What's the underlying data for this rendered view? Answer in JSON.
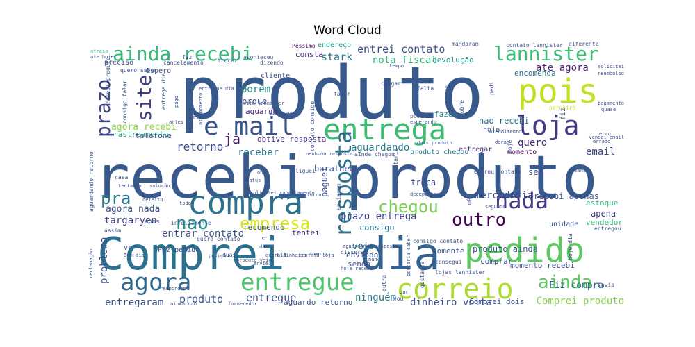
{
  "chart_data": {
    "type": "wordcloud",
    "title": "Word Cloud",
    "colormap": "viridis",
    "words": [
      {
        "text": "produto",
        "color": "#38598c"
      },
      {
        "text": "recebi produto",
        "color": "#38598c"
      },
      {
        "text": "Comprei",
        "color": "#2d708e"
      },
      {
        "text": "dia",
        "color": "#34618d"
      },
      {
        "text": "pedido",
        "color": "#5ec962"
      },
      {
        "text": "recebi",
        "color": "#3b528b"
      },
      {
        "text": "correio",
        "color": "#addc30"
      },
      {
        "text": "compra",
        "color": "#2c728e"
      },
      {
        "text": "entrega",
        "color": "#3fbc73"
      },
      {
        "text": "pois",
        "color": "#c2df23"
      },
      {
        "text": "loja",
        "color": "#443983"
      },
      {
        "text": "e mail",
        "color": "#39568c"
      },
      {
        "text": "entregue",
        "color": "#4ec36b"
      },
      {
        "text": "agora",
        "color": "#31688e"
      },
      {
        "text": "ainda recebi",
        "color": "#35b779"
      },
      {
        "text": "lannister",
        "color": "#3dbc74"
      },
      {
        "text": "nada",
        "color": "#443a83"
      },
      {
        "text": "site",
        "color": "#414287"
      },
      {
        "text": "resposta",
        "color": "#2c728e"
      },
      {
        "text": "prazo",
        "color": "#414487"
      },
      {
        "text": "chegou",
        "color": "#7ad151"
      },
      {
        "text": "outro",
        "color": "#440154"
      },
      {
        "text": "ainda",
        "color": "#5ec962"
      },
      {
        "text": "empresa",
        "color": "#d8e219"
      },
      {
        "text": "nao",
        "color": "#21908d"
      },
      {
        "text": "pra",
        "color": "#287c8e"
      },
      {
        "text": "ja",
        "color": "#481b6d"
      },
      {
        "text": "entrei contato",
        "color": "#3b528b"
      },
      {
        "text": "stark",
        "color": "#2a788e"
      },
      {
        "text": "nota fiscal",
        "color": "#35b779"
      },
      {
        "text": "devolução",
        "color": "#1f9a8a"
      },
      {
        "text": "consta",
        "color": "#46327e"
      },
      {
        "text": "endereço",
        "color": "#1fa088"
      },
      {
        "text": "ate agora",
        "color": "#482576"
      },
      {
        "text": "encomenda",
        "color": "#2c728e"
      },
      {
        "text": "porém",
        "color": "#228c8d"
      },
      {
        "text": "porque",
        "color": "#3b528b"
      },
      {
        "text": "aguardo",
        "color": "#482878"
      },
      {
        "text": "fazer",
        "color": "#25858e"
      },
      {
        "text": "agora recebi",
        "color": "#90d743"
      },
      {
        "text": "rastreamento",
        "color": "#22a884"
      },
      {
        "text": "retorno",
        "color": "#3e4a89"
      },
      {
        "text": "receber",
        "color": "#2a788e"
      },
      {
        "text": "aguardando",
        "color": "#2a788e"
      },
      {
        "text": "nao recebi",
        "color": "#2d708e"
      },
      {
        "text": "hoje",
        "color": "#3b528b"
      },
      {
        "text": "quero",
        "color": "#482878"
      },
      {
        "text": "email",
        "color": "#3e4989"
      },
      {
        "text": "telefone",
        "color": "#3b528b"
      },
      {
        "text": "obtive resposta",
        "color": "#46337f"
      },
      {
        "text": "entregar",
        "color": "#472d7b"
      },
      {
        "text": "momento",
        "color": "#440154"
      },
      {
        "text": "produto chegou",
        "color": "#2a788e"
      },
      {
        "text": "agora nada",
        "color": "#3b528b"
      },
      {
        "text": "targaryen",
        "color": "#414487"
      },
      {
        "text": "mercadoria",
        "color": "#3b528b"
      },
      {
        "text": "apena",
        "color": "#443983"
      },
      {
        "text": "estoque",
        "color": "#35b779"
      },
      {
        "text": "vendedor",
        "color": "#35b779"
      },
      {
        "text": "recebi apenas",
        "color": "#3b528b"
      },
      {
        "text": "entrar contato",
        "color": "#3b528b"
      },
      {
        "text": "prazo entrega",
        "color": "#414487"
      },
      {
        "text": "consigo",
        "color": "#2a788e"
      },
      {
        "text": "recomendo",
        "color": "#3b528b"
      },
      {
        "text": "tentei",
        "color": "#46327e"
      },
      {
        "text": "troca",
        "color": "#3b528b"
      },
      {
        "text": "paguei",
        "color": "#3e4a89"
      },
      {
        "text": "problema",
        "color": "#39568c"
      },
      {
        "text": "veio",
        "color": "#287c8e"
      },
      {
        "text": "enviado",
        "color": "#3b528b"
      },
      {
        "text": "sendo",
        "color": "#3e4a89"
      },
      {
        "text": "somente",
        "color": "#3b528b"
      },
      {
        "text": "produto ainda",
        "color": "#3b528b"
      },
      {
        "text": "unidade",
        "color": "#3b528b"
      },
      {
        "text": "comprar",
        "color": "#3b528b"
      },
      {
        "text": "momento recebi",
        "color": "#3b528b"
      },
      {
        "text": "produto",
        "color": "#3b528b"
      },
      {
        "text": "entregue",
        "color": "#3b528b"
      },
      {
        "text": "entregaram",
        "color": "#3b528b"
      },
      {
        "text": "ninguém",
        "color": "#2a788e"
      },
      {
        "text": "dinheiro volta",
        "color": "#3b528b"
      },
      {
        "text": "Comprei dois",
        "color": "#3b528b"
      },
      {
        "text": "Comprei produto",
        "color": "#84d44b"
      },
      {
        "text": "Fiz compra",
        "color": "#31688e"
      },
      {
        "text": "aguardo retorno",
        "color": "#3b528b"
      },
      {
        "text": "cancelamento",
        "color": "#3b528b"
      },
      {
        "text": "preciso",
        "color": "#3b528b"
      },
      {
        "text": "Espero",
        "color": "#3b528b"
      },
      {
        "text": "aconteceu",
        "color": "#3b528b"
      },
      {
        "text": "dizendo",
        "color": "#3b528b"
      },
      {
        "text": "cliente",
        "color": "#3b528b"
      },
      {
        "text": "mandaram",
        "color": "#3b528b"
      },
      {
        "text": "contato lannister",
        "color": "#3b528b"
      },
      {
        "text": "diferente",
        "color": "#3b528b"
      },
      {
        "text": "Péssimo",
        "color": "#440154"
      },
      {
        "text": "atraso",
        "color": "#35b779"
      },
      {
        "text": "ate hoje",
        "color": "#3b528b"
      },
      {
        "text": "tempo",
        "color": "#3b528b"
      },
      {
        "text": "chegar",
        "color": "#3b528b"
      },
      {
        "text": "falta",
        "color": "#3b528b"
      },
      {
        "text": "favor",
        "color": "#3b528b"
      },
      {
        "text": "caso",
        "color": "#3b528b"
      },
      {
        "text": "pedi",
        "color": "#3b528b"
      },
      {
        "text": "reembolso",
        "color": "#3b528b"
      },
      {
        "text": "pagamento",
        "color": "#3b528b"
      },
      {
        "text": "parceiro",
        "color": "#bddf26"
      },
      {
        "text": "posso",
        "color": "#3b528b"
      },
      {
        "text": "esperando",
        "color": "#3b528b"
      },
      {
        "text": "deram",
        "color": "#3b528b"
      },
      {
        "text": "dois produto",
        "color": "#3b528b"
      },
      {
        "text": "ainda chegou",
        "color": "#3b528b"
      },
      {
        "text": "sei",
        "color": "#3b528b"
      },
      {
        "text": "semana",
        "color": "#3b528b"
      },
      {
        "text": "liguei",
        "color": "#3b528b"
      },
      {
        "text": "onde",
        "color": "#3b528b"
      },
      {
        "text": "status",
        "color": "#3b528b"
      },
      {
        "text": "solicitei cancelamento",
        "color": "#3b528b"
      },
      {
        "text": "antes",
        "color": "#3b528b"
      },
      {
        "text": "casa",
        "color": "#3b528b"
      },
      {
        "text": "tentando",
        "color": "#3b528b"
      },
      {
        "text": "solução",
        "color": "#3b528b"
      },
      {
        "text": "defeito",
        "color": "#3b528b"
      },
      {
        "text": "todo",
        "color": "#3b528b"
      },
      {
        "text": "estorno",
        "color": "#3b528b"
      },
      {
        "text": "mês",
        "color": "#3b528b"
      },
      {
        "text": "segundo",
        "color": "#3b528b"
      },
      {
        "text": "após",
        "color": "#3b528b"
      },
      {
        "text": "assim",
        "color": "#3b528b"
      },
      {
        "text": "vc",
        "color": "#3b528b"
      },
      {
        "text": "Bom dia",
        "color": "#3b528b"
      },
      {
        "text": "kit",
        "color": "#3b528b"
      },
      {
        "text": "enviei",
        "color": "#3b528b"
      },
      {
        "text": "data",
        "color": "#3b528b"
      },
      {
        "text": "quero dinheiro",
        "color": "#3b528b"
      },
      {
        "text": "disseram",
        "color": "#3b528b"
      },
      {
        "text": "nunca",
        "color": "#3b528b"
      },
      {
        "text": "compro",
        "color": "#3b528b"
      },
      {
        "text": "hoje recebi",
        "color": "#3b528b"
      },
      {
        "text": "lojas lannister",
        "color": "#3b528b"
      },
      {
        "text": "consegui",
        "color": "#3b528b"
      },
      {
        "text": "havia",
        "color": "#3b528b"
      },
      {
        "text": "respondem",
        "color": "#3b528b"
      },
      {
        "text": "ainda nao",
        "color": "#3b528b"
      },
      {
        "text": "fornecedor",
        "color": "#3b528b"
      },
      {
        "text": "vou",
        "color": "#3b528b"
      },
      {
        "text": "dar",
        "color": "#3b528b"
      },
      {
        "text": "outra",
        "color": "#3b528b"
      },
      {
        "text": "gostaria saber",
        "color": "#3b528b"
      },
      {
        "text": "hoje dia",
        "color": "#3b528b"
      },
      {
        "text": "entregou",
        "color": "#3b528b"
      },
      {
        "text": "reclamação",
        "color": "#3b528b"
      },
      {
        "text": "gostaria",
        "color": "#3b528b"
      },
      {
        "text": "erro",
        "color": "#3b528b"
      },
      {
        "text": "errado",
        "color": "#3b528b"
      },
      {
        "text": "vendei email",
        "color": "#3b528b"
      },
      {
        "text": "solicitei",
        "color": "#3b528b"
      },
      {
        "text": "quase",
        "color": "#3b528b"
      },
      {
        "text": "motivo",
        "color": "#3b528b"
      },
      {
        "text": "dia agora",
        "color": "#3b528b"
      },
      {
        "text": "site lannister",
        "color": "#3b528b"
      },
      {
        "text": "entregue dia",
        "color": "#3b528b"
      },
      {
        "text": "pago",
        "color": "#3b528b"
      },
      {
        "text": "consigo falar",
        "color": "#3b528b"
      },
      {
        "text": "recebi produto",
        "color": "#3b528b"
      },
      {
        "text": "entrega dia",
        "color": "#3b528b"
      },
      {
        "text": "quero saber",
        "color": "#3b528b"
      },
      {
        "text": "faz",
        "color": "#3b528b"
      },
      {
        "text": "trocar",
        "color": "#3b528b"
      },
      {
        "text": "ate momento",
        "color": "#3b528b"
      },
      {
        "text": "aguardando retorno",
        "color": "#3b528b"
      },
      {
        "text": "Fiz pedido",
        "color": "#3b528b"
      },
      {
        "text": "entrou contato",
        "color": "#3b528b"
      },
      {
        "text": "hoje",
        "color": "#3b528b"
      },
      {
        "text": "fiz",
        "color": "#3b528b"
      },
      {
        "text": "sobre",
        "color": "#3b528b"
      },
      {
        "text": "contato consigo",
        "color": "#3b528b"
      },
      {
        "text": "nenhuma resposta",
        "color": "#3b528b"
      },
      {
        "text": "contato loja",
        "color": "#3b528b"
      },
      {
        "text": "enviaram",
        "color": "#3b528b"
      },
      {
        "text": "gostaria",
        "color": "#3b528b"
      },
      {
        "text": "decepcionada",
        "color": "#3b528b"
      },
      {
        "text": "aguardando resposta",
        "color": "#3b528b"
      },
      {
        "text": "consigo contato",
        "color": "#3b528b"
      },
      {
        "text": "atendimento",
        "color": "#3b528b"
      },
      {
        "text": "baratheon",
        "color": "#3b528b"
      },
      {
        "text": "produto veio",
        "color": "#3b528b"
      },
      {
        "text": "posição",
        "color": "#3b528b"
      },
      {
        "text": "q",
        "color": "#3b528b"
      },
      {
        "text": "infelizmente",
        "color": "#3b528b"
      },
      {
        "text": "quero contato",
        "color": "#3b528b"
      },
      {
        "text": "duas",
        "color": "#3b528b"
      }
    ]
  }
}
